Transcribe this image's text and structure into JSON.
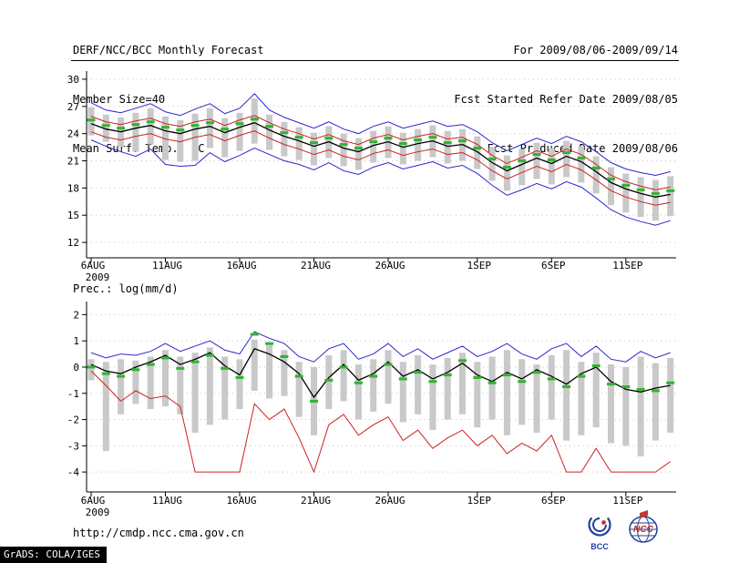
{
  "header": {
    "left": {
      "title": "DERF/NCC/BCC Monthly Forecast",
      "member_size": "Member Size=40"
    },
    "right": {
      "for_range": "For 2009/08/06-2009/09/14",
      "refer_date": "Fcst Started Refer Date 2009/08/05",
      "produced_date": "Fcst Produced Date 2009/08/06"
    }
  },
  "footer": {
    "url": "http://cmdp.ncc.cma.gov.cn",
    "grads_credit": "GrADS: COLA/IGES",
    "logos": [
      "BCC",
      "NCC"
    ]
  },
  "chart_data": [
    {
      "name": "surface-temperature-forecast",
      "type": "line",
      "title": "Mean Surf. Temp.: °C",
      "n_points": 40,
      "x_tick_indices": [
        0,
        5,
        10,
        15,
        20,
        26,
        31,
        36
      ],
      "x_tick_labels": [
        "6AUG",
        "11AUG",
        "16AUG",
        "21AUG",
        "26AUG",
        "1SEP",
        "6SEP",
        "11SEP"
      ],
      "x_year_label": "2009",
      "ylim": [
        10.3,
        30.9
      ],
      "yticks": [
        12,
        15,
        18,
        21,
        24,
        27,
        30
      ],
      "grid": true,
      "legend_position": "none",
      "series": [
        {
          "name": "spread-bar",
          "type": "bar-range",
          "color": "#c9c9c9",
          "high": [
            26.9,
            26.1,
            25.8,
            26.3,
            26.8,
            25.9,
            25.5,
            26.2,
            26.8,
            25.7,
            26.3,
            27.9,
            26.1,
            25.3,
            24.7,
            24.1,
            24.8,
            24.0,
            23.5,
            24.3,
            24.8,
            24.1,
            24.5,
            24.9,
            24.3,
            24.5,
            23.7,
            22.5,
            21.6,
            22.3,
            23.0,
            22.4,
            23.2,
            22.6,
            21.5,
            20.3,
            19.6,
            19.2,
            18.9,
            19.3
          ],
          "low": [
            23.8,
            23.1,
            22.5,
            22.0,
            22.8,
            21.1,
            20.9,
            21.0,
            22.4,
            21.4,
            22.1,
            22.9,
            22.2,
            21.5,
            21.1,
            20.5,
            21.3,
            20.4,
            20.0,
            20.8,
            21.3,
            20.6,
            21.0,
            21.4,
            20.7,
            21.0,
            20.1,
            18.8,
            17.7,
            18.3,
            19.0,
            18.4,
            19.2,
            18.6,
            17.4,
            16.1,
            15.3,
            14.8,
            14.4,
            14.9
          ]
        },
        {
          "name": "ensemble-max",
          "type": "line",
          "color": "#2929cc",
          "values": [
            27.4,
            26.6,
            26.3,
            26.8,
            27.3,
            26.4,
            26.0,
            26.7,
            27.3,
            26.2,
            26.8,
            28.4,
            26.6,
            25.8,
            25.2,
            24.6,
            25.3,
            24.5,
            24.0,
            24.8,
            25.3,
            24.6,
            25.0,
            25.4,
            24.8,
            25.0,
            24.2,
            23.0,
            22.1,
            22.8,
            23.5,
            22.9,
            23.7,
            23.1,
            22.0,
            20.8,
            20.1,
            19.7,
            19.4,
            19.8
          ]
        },
        {
          "name": "ensemble-min",
          "type": "line",
          "color": "#2929cc",
          "values": [
            23.3,
            22.6,
            22.0,
            21.5,
            22.3,
            20.6,
            20.4,
            20.5,
            21.9,
            20.9,
            21.6,
            22.4,
            21.7,
            21.0,
            20.6,
            20.0,
            20.8,
            19.9,
            19.5,
            20.3,
            20.8,
            20.1,
            20.5,
            20.9,
            20.2,
            20.5,
            19.6,
            18.3,
            17.2,
            17.8,
            18.5,
            17.9,
            18.7,
            18.1,
            16.9,
            15.6,
            14.8,
            14.3,
            13.9,
            14.4
          ]
        },
        {
          "name": "upper-quartile",
          "type": "line",
          "color": "#cc2222",
          "values": [
            25.9,
            25.3,
            25.0,
            25.4,
            25.7,
            25.1,
            24.8,
            25.3,
            25.6,
            24.9,
            25.5,
            26.0,
            25.2,
            24.5,
            24.0,
            23.4,
            23.9,
            23.2,
            22.8,
            23.5,
            23.9,
            23.3,
            23.7,
            24.0,
            23.4,
            23.6,
            22.8,
            21.6,
            20.7,
            21.4,
            22.1,
            21.5,
            22.3,
            21.7,
            20.6,
            19.4,
            18.7,
            18.2,
            17.8,
            18.1
          ]
        },
        {
          "name": "lower-quartile",
          "type": "line",
          "color": "#cc2222",
          "values": [
            24.2,
            23.6,
            23.3,
            23.7,
            24.0,
            23.4,
            23.1,
            23.6,
            23.9,
            23.2,
            23.8,
            24.3,
            23.5,
            22.8,
            22.3,
            21.7,
            22.2,
            21.5,
            21.1,
            21.8,
            22.2,
            21.6,
            22.0,
            22.3,
            21.7,
            21.9,
            21.1,
            19.9,
            19.0,
            19.7,
            20.4,
            19.8,
            20.6,
            20.0,
            18.9,
            17.7,
            17.0,
            16.5,
            16.1,
            16.4
          ]
        },
        {
          "name": "ensemble-mean",
          "type": "line",
          "color": "#000000",
          "width": 1.3,
          "values": [
            25.1,
            24.5,
            24.2,
            24.6,
            24.9,
            24.3,
            24.0,
            24.5,
            24.8,
            24.1,
            24.7,
            25.2,
            24.4,
            23.7,
            23.2,
            22.6,
            23.1,
            22.4,
            22.0,
            22.7,
            23.1,
            22.5,
            22.9,
            23.2,
            22.6,
            22.8,
            22.0,
            20.8,
            19.9,
            20.6,
            21.3,
            20.7,
            21.5,
            20.9,
            19.8,
            18.6,
            17.9,
            17.4,
            17.0,
            17.3
          ]
        },
        {
          "name": "median-marker",
          "type": "dash-marker",
          "color": "#2fb52f",
          "values": [
            25.5,
            24.9,
            24.6,
            25.0,
            25.3,
            24.7,
            24.4,
            24.9,
            25.2,
            24.5,
            25.1,
            25.6,
            24.8,
            24.1,
            23.6,
            23.0,
            23.5,
            22.8,
            22.4,
            23.1,
            23.5,
            22.9,
            23.3,
            23.6,
            23.0,
            23.2,
            22.4,
            21.2,
            20.3,
            21.0,
            21.7,
            21.1,
            21.9,
            21.3,
            20.2,
            19.0,
            18.3,
            17.8,
            17.4,
            17.7
          ]
        }
      ]
    },
    {
      "name": "precipitation-forecast",
      "type": "line",
      "title": "Prec.: log(mm/d)",
      "n_points": 40,
      "x_tick_indices": [
        0,
        5,
        10,
        15,
        20,
        26,
        31,
        36
      ],
      "x_tick_labels": [
        "6AUG",
        "11AUG",
        "16AUG",
        "21AUG",
        "26AUG",
        "1SEP",
        "6SEP",
        "11SEP"
      ],
      "x_year_label": "2009",
      "ylim": [
        -4.76,
        2.5
      ],
      "yticks": [
        -4,
        -3,
        -2,
        -1,
        0,
        1,
        2
      ],
      "grid": true,
      "legend_position": "none",
      "series": [
        {
          "name": "spread-bar",
          "type": "bar-range",
          "color": "#c9c9c9",
          "high": [
            0.3,
            0.2,
            0.3,
            0.25,
            0.4,
            0.65,
            0.4,
            0.55,
            0.75,
            0.4,
            0.3,
            1.05,
            0.85,
            0.65,
            0.2,
            0.0,
            0.45,
            0.65,
            0.1,
            0.3,
            0.65,
            0.2,
            0.45,
            0.1,
            0.35,
            0.55,
            0.2,
            0.4,
            0.65,
            0.3,
            0.1,
            0.45,
            0.65,
            0.2,
            0.55,
            0.1,
            0.0,
            0.4,
            0.15,
            0.35
          ],
          "low": [
            -0.5,
            -3.2,
            -1.8,
            -1.4,
            -1.6,
            -1.5,
            -1.8,
            -2.5,
            -2.2,
            -2.0,
            -1.6,
            -0.9,
            -1.2,
            -1.1,
            -1.9,
            -2.6,
            -1.6,
            -1.3,
            -2.0,
            -1.7,
            -1.4,
            -2.1,
            -1.8,
            -2.4,
            -2.0,
            -1.8,
            -2.3,
            -2.0,
            -2.6,
            -2.2,
            -2.5,
            -2.0,
            -2.8,
            -2.6,
            -2.3,
            -2.9,
            -3.0,
            -3.4,
            -2.8,
            -2.5
          ]
        },
        {
          "name": "ensemble-max",
          "type": "line",
          "color": "#2929cc",
          "values": [
            0.55,
            0.35,
            0.5,
            0.45,
            0.6,
            0.9,
            0.6,
            0.8,
            1.0,
            0.65,
            0.5,
            1.35,
            1.1,
            0.9,
            0.4,
            0.2,
            0.7,
            0.9,
            0.3,
            0.5,
            0.9,
            0.4,
            0.7,
            0.3,
            0.55,
            0.8,
            0.4,
            0.6,
            0.9,
            0.5,
            0.3,
            0.7,
            0.9,
            0.4,
            0.8,
            0.3,
            0.2,
            0.6,
            0.35,
            0.55
          ]
        },
        {
          "name": "ensemble-min",
          "type": "line",
          "color": "#cc2222",
          "values": [
            -0.15,
            -0.7,
            -1.3,
            -0.9,
            -1.2,
            -1.1,
            -1.5,
            -4.0,
            -4.0,
            -4.0,
            -4.0,
            -1.4,
            -2.0,
            -1.6,
            -2.7,
            -4.0,
            -2.2,
            -1.8,
            -2.6,
            -2.2,
            -1.9,
            -2.8,
            -2.4,
            -3.1,
            -2.7,
            -2.4,
            -3.0,
            -2.6,
            -3.3,
            -2.9,
            -3.2,
            -2.6,
            -4.0,
            -4.0,
            -3.1,
            -4.0,
            -4.0,
            -4.0,
            -4.0,
            -3.6
          ]
        },
        {
          "name": "ensemble-mean",
          "type": "line",
          "color": "#000000",
          "width": 1.3,
          "values": [
            0.1,
            -0.15,
            -0.25,
            0.0,
            0.2,
            0.45,
            0.1,
            0.3,
            0.55,
            0.05,
            -0.3,
            0.7,
            0.5,
            0.2,
            -0.25,
            -1.15,
            -0.4,
            0.1,
            -0.5,
            -0.25,
            0.2,
            -0.35,
            -0.1,
            -0.45,
            -0.2,
            0.15,
            -0.3,
            -0.55,
            -0.2,
            -0.45,
            -0.1,
            -0.35,
            -0.65,
            -0.25,
            0.0,
            -0.55,
            -0.85,
            -0.95,
            -0.8,
            -0.7
          ]
        },
        {
          "name": "median-marker",
          "type": "dash-marker",
          "color": "#2fb52f",
          "values": [
            0.0,
            -0.25,
            -0.35,
            -0.1,
            0.1,
            0.35,
            -0.05,
            0.2,
            0.45,
            -0.05,
            -0.4,
            1.25,
            0.9,
            0.4,
            -0.35,
            -1.3,
            -0.5,
            0.0,
            -0.6,
            -0.35,
            0.1,
            -0.45,
            -0.2,
            -0.55,
            -0.3,
            0.25,
            -0.4,
            -0.6,
            -0.3,
            -0.55,
            -0.2,
            -0.45,
            -0.75,
            -0.35,
            0.05,
            -0.65,
            -0.75,
            -0.85,
            -0.9,
            -0.6
          ]
        }
      ]
    }
  ]
}
